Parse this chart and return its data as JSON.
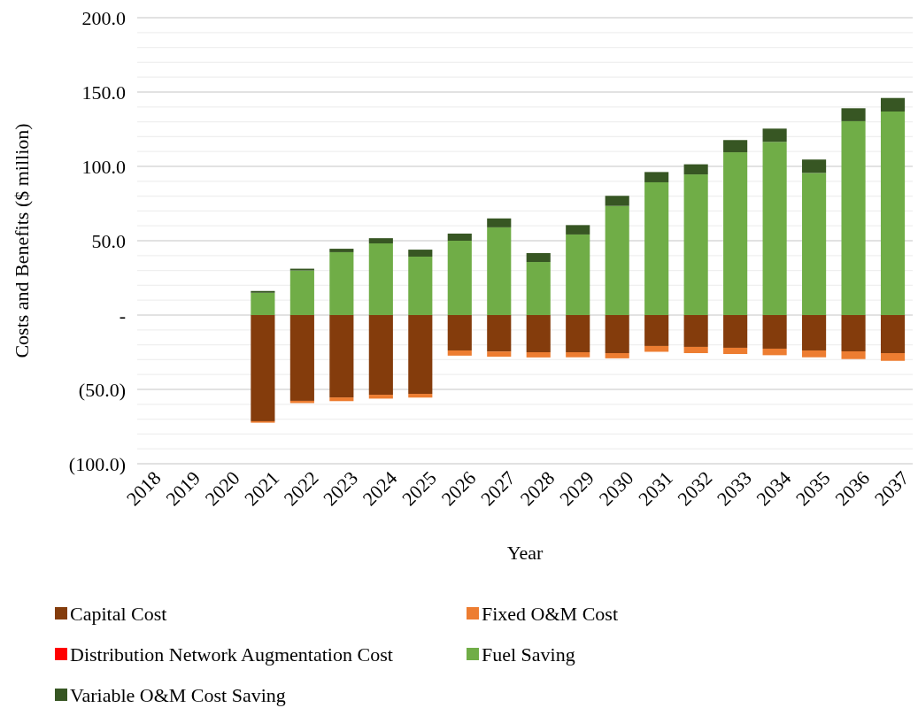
{
  "chart_data": {
    "type": "bar",
    "stacked": true,
    "xlabel": "Year",
    "ylabel": "Costs and Benefits ($ million)",
    "categories": [
      "2018",
      "2019",
      "2020",
      "2021",
      "2022",
      "2023",
      "2024",
      "2025",
      "2026",
      "2027",
      "2028",
      "2029",
      "2030",
      "2031",
      "2032",
      "2033",
      "2034",
      "2035",
      "2036",
      "2037"
    ],
    "series": [
      {
        "name": "Capital Cost",
        "color": "#843c0c",
        "values": [
          null,
          null,
          null,
          -71.4,
          -57.7,
          -55.4,
          -53.6,
          -53,
          -23.8,
          -24.5,
          -25,
          -25,
          -25.6,
          -20.8,
          -21.4,
          -22,
          -22.6,
          -23.8,
          -24.4,
          -25.6
        ]
      },
      {
        "name": "Fixed O&M Cost",
        "color": "#ed7d31",
        "values": [
          null,
          null,
          null,
          -1,
          -1.5,
          -2.5,
          -2.6,
          -2.5,
          -3.5,
          -3.5,
          -3.5,
          -3.4,
          -3.5,
          -3.9,
          -4.2,
          -4.2,
          -4.4,
          -4.6,
          -5.2,
          -5.2
        ]
      },
      {
        "name": "Distribution Network Augmentation Cost",
        "color": "#ff0000",
        "values": [
          null,
          null,
          null,
          0,
          0,
          0,
          0,
          0,
          0,
          0,
          0,
          0,
          0,
          0,
          0,
          0,
          0,
          0,
          0,
          0
        ]
      },
      {
        "name": "Fuel Saving",
        "color": "#70ad47",
        "values": [
          null,
          null,
          null,
          15,
          30,
          42.3,
          48.2,
          39.3,
          50,
          59,
          35.7,
          54.2,
          73.4,
          89.3,
          94.6,
          109.5,
          116.5,
          95.6,
          130.4,
          136.9
        ]
      },
      {
        "name": "Variable O&M Cost Saving",
        "color": "#375623",
        "values": [
          null,
          null,
          null,
          1.2,
          1.2,
          2.3,
          3.5,
          4.7,
          4.8,
          6,
          6,
          6.3,
          6.8,
          6.9,
          6.8,
          8.2,
          8.9,
          9,
          8.7,
          9.1
        ]
      }
    ],
    "ylim": [
      -100,
      200
    ],
    "yticks": [
      {
        "value": -100,
        "label": "(100.0)"
      },
      {
        "value": -90,
        "label": null
      },
      {
        "value": -80,
        "label": null
      },
      {
        "value": -70,
        "label": null
      },
      {
        "value": -60,
        "label": null
      },
      {
        "value": -50,
        "label": "(50.0)"
      },
      {
        "value": -40,
        "label": null
      },
      {
        "value": -30,
        "label": null
      },
      {
        "value": -20,
        "label": null
      },
      {
        "value": -10,
        "label": null
      },
      {
        "value": 0,
        "label": "-"
      },
      {
        "value": 10,
        "label": null
      },
      {
        "value": 20,
        "label": null
      },
      {
        "value": 30,
        "label": null
      },
      {
        "value": 40,
        "label": null
      },
      {
        "value": 50,
        "label": "50.0"
      },
      {
        "value": 60,
        "label": null
      },
      {
        "value": 70,
        "label": null
      },
      {
        "value": 80,
        "label": null
      },
      {
        "value": 90,
        "label": null
      },
      {
        "value": 100,
        "label": "100.0"
      },
      {
        "value": 110,
        "label": null
      },
      {
        "value": 120,
        "label": null
      },
      {
        "value": 130,
        "label": null
      },
      {
        "value": 140,
        "label": null
      },
      {
        "value": 150,
        "label": "150.0"
      },
      {
        "value": 160,
        "label": null
      },
      {
        "value": 170,
        "label": null
      },
      {
        "value": 180,
        "label": null
      },
      {
        "value": 190,
        "label": null
      },
      {
        "value": 200,
        "label": "200.0"
      }
    ],
    "grid": "y",
    "legend": "bottom"
  }
}
